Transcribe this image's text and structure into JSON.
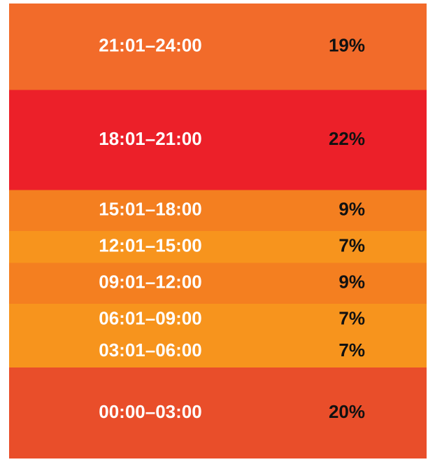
{
  "chart_data": {
    "type": "stacked_band",
    "categories": [
      "21:01–24:00",
      "18:01–21:00",
      "15:01–18:00",
      "12:01–15:00",
      "09:01–12:00",
      "06:01–09:00",
      "03:01–06:00",
      "00:00–03:00"
    ],
    "values": [
      19,
      22,
      9,
      7,
      9,
      7,
      7,
      20
    ],
    "value_labels": [
      "19%",
      "22%",
      "9%",
      "7%",
      "9%",
      "7%",
      "7%",
      "20%"
    ],
    "colors": [
      "#f26b2a",
      "#ec2029",
      "#f47f20",
      "#f7941d",
      "#f47f20",
      "#f7941d",
      "#f7941d",
      "#e94e2a"
    ]
  }
}
